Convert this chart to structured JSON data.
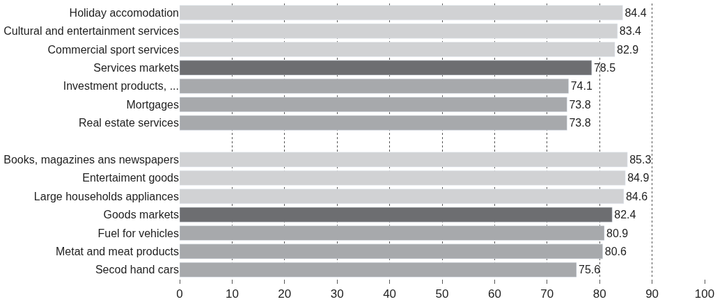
{
  "chart_data": {
    "type": "bar",
    "orientation": "horizontal",
    "categories": [
      "Holiday accomodation",
      "Cultural and entertainment services",
      "Commercial sport services",
      "Services markets",
      "Investment products, ...",
      "Mortgages",
      "Real estate services",
      null,
      "Books, magazines ans newspapers",
      "Entertaiment goods",
      "Large households appliances",
      "Goods markets",
      "Fuel for vehicles",
      "Metat and meat products",
      "Secod hand cars"
    ],
    "values": [
      84.4,
      83.4,
      82.9,
      78.5,
      74.1,
      73.8,
      73.8,
      null,
      85.3,
      84.9,
      84.6,
      82.4,
      80.9,
      80.6,
      75.6
    ],
    "colors": [
      "#d1d2d4",
      "#d1d2d4",
      "#d1d2d4",
      "#6d6e71",
      "#a7a9ac",
      "#a7a9ac",
      "#a7a9ac",
      null,
      "#d1d2d4",
      "#d1d2d4",
      "#d1d2d4",
      "#6d6e71",
      "#a7a9ac",
      "#a7a9ac",
      "#a7a9ac"
    ],
    "data_labels": true,
    "xlim": [
      0,
      100
    ],
    "xticks": [
      0,
      10,
      20,
      30,
      40,
      50,
      60,
      70,
      80,
      90,
      100
    ],
    "grid": "x"
  }
}
